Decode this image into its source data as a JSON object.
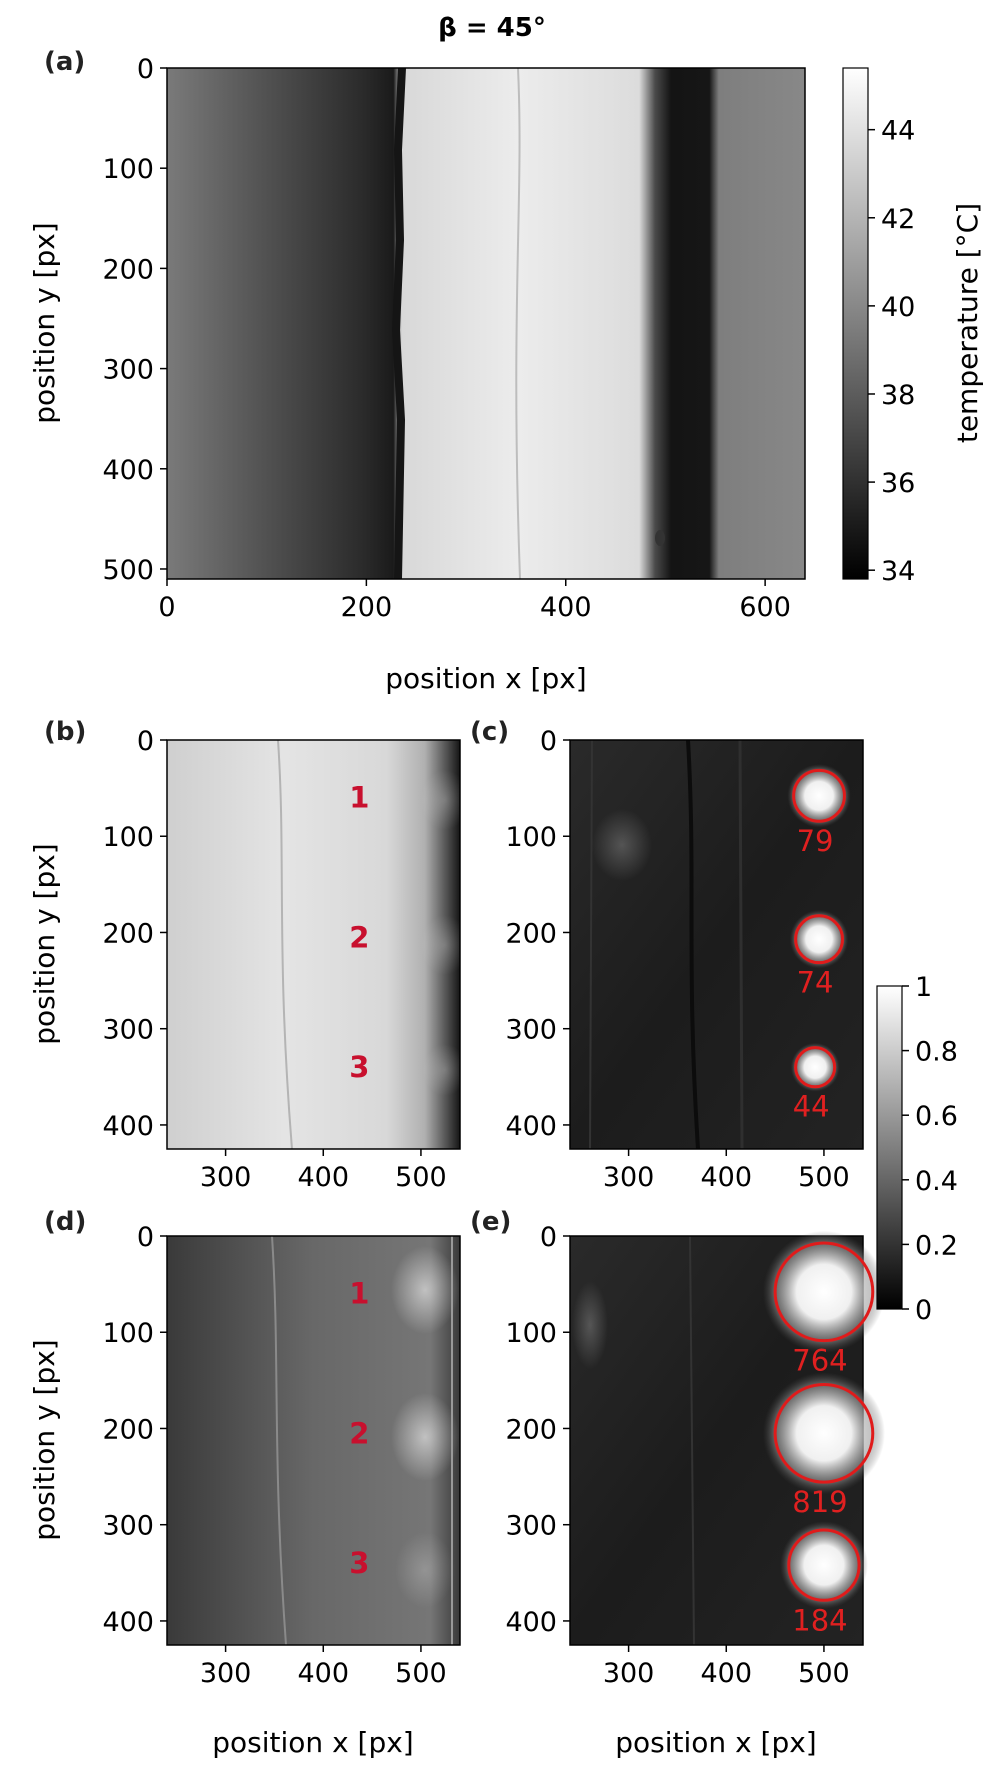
{
  "title": "β = 45°",
  "chart_data": [
    {
      "panel": "(a)",
      "type": "heatmap",
      "xlabel": "position x [px]",
      "ylabel": "position y [px]",
      "xlim": [
        0,
        640
      ],
      "ylim": [
        510,
        0
      ],
      "xticks": [
        0,
        200,
        400,
        600
      ],
      "yticks": [
        0,
        100,
        200,
        300,
        400,
        500
      ],
      "colorbar": {
        "label": "temperature [°C]",
        "range": [
          33.8,
          45.4
        ],
        "ticks": [
          34,
          36,
          38,
          40,
          42,
          44
        ]
      },
      "profile": [
        {
          "x": 0,
          "value": 38.6
        },
        {
          "x": 100,
          "value": 36.5
        },
        {
          "x": 200,
          "value": 34.6
        },
        {
          "x": 232,
          "value": 34.2
        },
        {
          "x": 240,
          "value": 43.5
        },
        {
          "x": 350,
          "value": 44.6
        },
        {
          "x": 500,
          "value": 43.8
        },
        {
          "x": 530,
          "value": 34.0
        },
        {
          "x": 550,
          "value": 34.0
        },
        {
          "x": 560,
          "value": 38.6
        },
        {
          "x": 640,
          "value": 38.8
        }
      ]
    },
    {
      "panel": "(b)",
      "type": "heatmap",
      "ylabel": "position y [px]",
      "xlim": [
        240,
        540
      ],
      "ylim": [
        425,
        0
      ],
      "xticks": [
        300,
        400,
        500
      ],
      "yticks": [
        0,
        100,
        200,
        300,
        400
      ],
      "markers": [
        {
          "label": "1",
          "x": 437,
          "y": 60
        },
        {
          "label": "2",
          "x": 437,
          "y": 205
        },
        {
          "label": "3",
          "x": 437,
          "y": 340
        }
      ]
    },
    {
      "panel": "(c)",
      "type": "heatmap",
      "xlim": [
        240,
        540
      ],
      "ylim": [
        425,
        0
      ],
      "xticks": [
        300,
        400,
        500
      ],
      "yticks": [
        0,
        100,
        200,
        300,
        400
      ],
      "colorbar": {
        "range": [
          0,
          1
        ],
        "ticks": [
          0.0,
          0.2,
          0.4,
          0.6,
          0.8,
          1.0
        ]
      },
      "spots": [
        {
          "x": 495,
          "y": 58,
          "r": 26,
          "value": "79"
        },
        {
          "x": 495,
          "y": 207,
          "r": 24,
          "value": "74"
        },
        {
          "x": 491,
          "y": 340,
          "r": 20,
          "value": "44"
        }
      ]
    },
    {
      "panel": "(d)",
      "type": "heatmap",
      "xlabel": "position x [px]",
      "ylabel": "position y [px]",
      "xlim": [
        240,
        540
      ],
      "ylim": [
        425,
        0
      ],
      "xticks": [
        300,
        400,
        500
      ],
      "yticks": [
        0,
        100,
        200,
        300,
        400
      ],
      "markers": [
        {
          "label": "1",
          "x": 437,
          "y": 60
        },
        {
          "label": "2",
          "x": 437,
          "y": 205
        },
        {
          "label": "3",
          "x": 437,
          "y": 340
        }
      ]
    },
    {
      "panel": "(e)",
      "type": "heatmap",
      "xlabel": "position x [px]",
      "xlim": [
        240,
        540
      ],
      "ylim": [
        425,
        0
      ],
      "xticks": [
        300,
        400,
        500
      ],
      "yticks": [
        0,
        100,
        200,
        300,
        400
      ],
      "spots": [
        {
          "x": 500,
          "y": 58,
          "r": 50,
          "value": "764"
        },
        {
          "x": 500,
          "y": 205,
          "r": 50,
          "value": "819"
        },
        {
          "x": 500,
          "y": 342,
          "r": 36,
          "value": "184"
        }
      ]
    }
  ]
}
